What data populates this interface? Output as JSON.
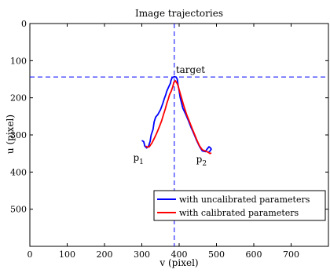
{
  "chart_data": {
    "type": "line",
    "title": "Image trajectories",
    "xlabel": "v (pixel)",
    "ylabel": "u (pixel)",
    "xlim": [
      0,
      800
    ],
    "ylim": [
      0,
      600
    ],
    "y_reversed": true,
    "x_ticks": [
      0,
      100,
      200,
      300,
      400,
      500,
      600,
      700
    ],
    "y_ticks": [
      0,
      100,
      200,
      300,
      400,
      500
    ],
    "grid": false,
    "legend_position": "bottom-right",
    "target": {
      "label": "target",
      "x": 387,
      "y": 144
    },
    "start_labels": [
      {
        "base": "p",
        "sub": "1",
        "x": 302,
        "y": 325
      },
      {
        "base": "p",
        "sub": "2",
        "x": 475,
        "y": 330
      }
    ],
    "series": [
      {
        "name": "with uncalibrated parameters",
        "color": "#0000ff",
        "points": [
          [
            300,
            315
          ],
          [
            305,
            318
          ],
          [
            308,
            330
          ],
          [
            313,
            335
          ],
          [
            318,
            330
          ],
          [
            322,
            318
          ],
          [
            325,
            300
          ],
          [
            330,
            285
          ],
          [
            333,
            265
          ],
          [
            337,
            252
          ],
          [
            343,
            245
          ],
          [
            350,
            232
          ],
          [
            356,
            216
          ],
          [
            360,
            203
          ],
          [
            364,
            192
          ],
          [
            367,
            182
          ],
          [
            370,
            175
          ],
          [
            374,
            166
          ],
          [
            377,
            160
          ],
          [
            378,
            154
          ],
          [
            381,
            146
          ],
          [
            387,
            143
          ],
          [
            392,
            144
          ],
          [
            395,
            150
          ],
          [
            397,
            165
          ],
          [
            400,
            182
          ],
          [
            403,
            200
          ],
          [
            410,
            228
          ],
          [
            418,
            245
          ],
          [
            425,
            262
          ],
          [
            432,
            280
          ],
          [
            440,
            298
          ],
          [
            447,
            315
          ],
          [
            455,
            332
          ],
          [
            462,
            343
          ],
          [
            470,
            345
          ],
          [
            475,
            338
          ],
          [
            480,
            332
          ],
          [
            483,
            334
          ],
          [
            486,
            338
          ],
          [
            483,
            343
          ],
          [
            478,
            347
          ]
        ]
      },
      {
        "name": "with calibrated parameters",
        "color": "#ff0000",
        "points": [
          [
            310,
            330
          ],
          [
            315,
            333
          ],
          [
            320,
            332
          ],
          [
            327,
            322
          ],
          [
            333,
            310
          ],
          [
            340,
            295
          ],
          [
            347,
            278
          ],
          [
            353,
            262
          ],
          [
            358,
            245
          ],
          [
            363,
            230
          ],
          [
            367,
            215
          ],
          [
            371,
            203
          ],
          [
            374,
            192
          ],
          [
            379,
            182
          ],
          [
            383,
            170
          ],
          [
            386,
            158
          ],
          [
            390,
            154
          ],
          [
            396,
            164
          ],
          [
            400,
            178
          ],
          [
            405,
            196
          ],
          [
            412,
            220
          ],
          [
            420,
            245
          ],
          [
            428,
            265
          ],
          [
            435,
            283
          ],
          [
            442,
            300
          ],
          [
            448,
            315
          ],
          [
            455,
            330
          ],
          [
            462,
            340
          ],
          [
            470,
            343
          ],
          [
            478,
            347
          ],
          [
            483,
            350
          ],
          [
            486,
            348
          ]
        ]
      }
    ]
  }
}
